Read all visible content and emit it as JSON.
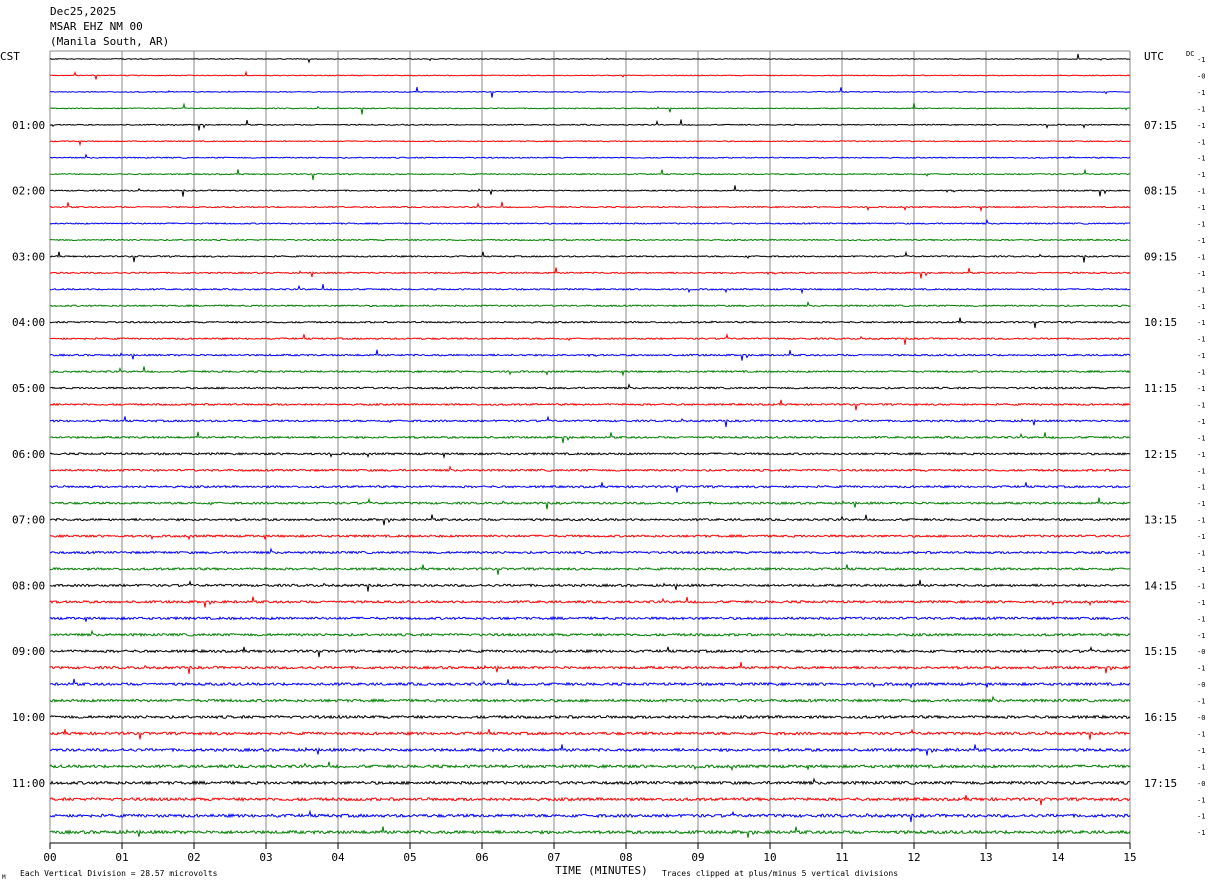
{
  "header": {
    "date": "Dec25,2025",
    "station": "MSAR EHZ NM 00",
    "location": "(Manila South, AR)"
  },
  "left_axis_label": "CST",
  "right_axis_label": "UTC",
  "dc_label": "DC",
  "footer": {
    "scale_note": "Each Vertical Division =   28.57 microvolts",
    "clip_note": "Traces clipped at plus/minus 5 vertical divisions",
    "mark": "M"
  },
  "chart_data": {
    "type": "line",
    "xlabel": "TIME (MINUTES)",
    "xlim": [
      0,
      15
    ],
    "x_ticks": [
      "00",
      "01",
      "02",
      "03",
      "04",
      "05",
      "06",
      "07",
      "08",
      "09",
      "10",
      "11",
      "12",
      "13",
      "14",
      "15"
    ],
    "y_time_labels_left": [
      "01:00",
      "02:00",
      "03:00",
      "04:00",
      "05:00",
      "06:00",
      "07:00",
      "08:00",
      "09:00",
      "10:00",
      "11:00"
    ],
    "y_time_labels_right": [
      "07:15",
      "08:15",
      "09:15",
      "10:15",
      "11:15",
      "12:15",
      "13:15",
      "14:15",
      "15:15",
      "16:15",
      "17:15"
    ],
    "traces_per_hour": 4,
    "trace_count": 48,
    "trace_colors": [
      "#000000",
      "#ff0000",
      "#0000ff",
      "#008000"
    ],
    "dc_offsets": [
      "-1",
      "-0",
      "-1",
      "-1",
      "-1",
      "-1",
      "-1",
      "-1",
      "-1",
      "-1",
      "-1",
      "-1",
      "-1",
      "-1",
      "-1",
      "-1",
      "-1",
      "-1",
      "-1",
      "-1",
      "-1",
      "-1",
      "-1",
      "-1",
      "-1",
      "-1",
      "-1",
      "-1",
      "-1",
      "-1",
      "-1",
      "-1",
      "-1",
      "-1",
      "-1",
      "-1",
      "-0",
      "-1",
      "-0",
      "-1",
      "-0",
      "-1",
      "-1",
      "-1",
      "-0",
      "-1",
      "-1",
      "-1"
    ]
  }
}
